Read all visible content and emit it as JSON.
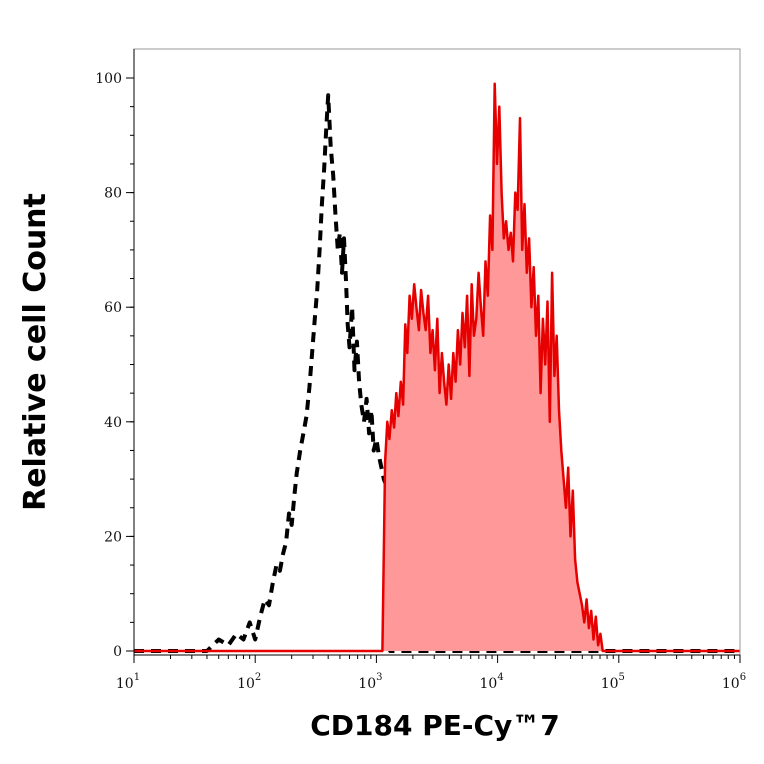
{
  "chart_data": {
    "type": "area",
    "title": "",
    "xlabel": "CD184 PE-Cy™7",
    "ylabel": "Relative cell Count",
    "xscale": "log",
    "xlim": [
      10,
      1000000
    ],
    "ylim": [
      0,
      100
    ],
    "yticks": [
      0,
      20,
      40,
      60,
      80,
      100
    ],
    "xticks": [
      {
        "value": 10,
        "base": "10",
        "exp": "1"
      },
      {
        "value": 100,
        "base": "10",
        "exp": "2"
      },
      {
        "value": 1000,
        "base": "10",
        "exp": "3"
      },
      {
        "value": 10000,
        "base": "10",
        "exp": "4"
      },
      {
        "value": 100000,
        "base": "10",
        "exp": "5"
      },
      {
        "value": 1000000,
        "base": "10",
        "exp": "6"
      }
    ],
    "grid": false,
    "series": [
      {
        "style": "dashed",
        "color": "#000000",
        "fill": "none",
        "x": [
          10,
          30,
          40,
          50,
          60,
          70,
          80,
          90,
          100,
          110,
          120,
          130,
          140,
          150,
          160,
          170,
          180,
          190,
          200,
          210,
          220,
          235,
          250,
          265,
          280,
          295,
          310,
          325,
          340,
          355,
          370,
          385,
          400,
          420,
          440,
          460,
          480,
          500,
          520,
          540,
          560,
          580,
          600,
          630,
          660,
          690,
          720,
          750,
          790,
          830,
          870,
          910,
          950,
          1000,
          1050,
          1100,
          1150,
          1200,
          1300,
          1500,
          2000,
          3000,
          5000,
          8000,
          12000,
          20000,
          40000,
          80000,
          200000,
          1000000
        ],
        "y": [
          0,
          0,
          0,
          2,
          1,
          3,
          2,
          5,
          2,
          6,
          9,
          8,
          12,
          15,
          14,
          17,
          19,
          24,
          22,
          27,
          31,
          35,
          38,
          41,
          46,
          52,
          58,
          63,
          70,
          78,
          84,
          91,
          97,
          88,
          83,
          76,
          70,
          73,
          66,
          72,
          65,
          57,
          53,
          60,
          49,
          54,
          47,
          43,
          40,
          44,
          38,
          42,
          35,
          37,
          34,
          32,
          30,
          29,
          0,
          0,
          0,
          0,
          0,
          0,
          0,
          0,
          0,
          0,
          0,
          0
        ]
      },
      {
        "style": "solid",
        "color": "#e60000",
        "fill": "#ff9999",
        "x": [
          10,
          500,
          1000,
          1120,
          1180,
          1230,
          1280,
          1340,
          1400,
          1460,
          1520,
          1590,
          1660,
          1730,
          1800,
          1880,
          1960,
          2050,
          2140,
          2240,
          2340,
          2440,
          2550,
          2670,
          2790,
          2910,
          3040,
          3180,
          3320,
          3470,
          3620,
          3780,
          3950,
          4130,
          4310,
          4500,
          4700,
          4910,
          5130,
          5360,
          5600,
          5850,
          6110,
          6380,
          6670,
          6970,
          7280,
          7600,
          7940,
          8300,
          8670,
          9060,
          9460,
          9880,
          10320,
          10780,
          11260,
          11760,
          12290,
          12840,
          13410,
          14010,
          14630,
          15290,
          15970,
          16680,
          17430,
          18200,
          19020,
          19870,
          20750,
          21680,
          22650,
          23660,
          24710,
          25820,
          26970,
          28170,
          29430,
          30740,
          32120,
          33550,
          35050,
          36610,
          38250,
          39950,
          41740,
          43600,
          45550,
          47580,
          49710,
          51930,
          54250,
          56670,
          59200,
          61840,
          64610,
          67490,
          70500,
          73650,
          80000,
          100000,
          1000000
        ],
        "y": [
          0,
          0,
          0,
          0,
          33,
          40,
          37,
          42,
          39,
          45,
          41,
          47,
          43,
          57,
          52,
          62,
          58,
          64,
          60,
          56,
          63,
          59,
          56,
          62,
          52,
          56,
          49,
          58,
          45,
          52,
          47,
          43,
          50,
          44,
          52,
          47,
          56,
          50,
          59,
          53,
          62,
          48,
          64,
          55,
          58,
          66,
          60,
          55,
          68,
          62,
          76,
          70,
          99,
          85,
          95,
          80,
          72,
          75,
          70,
          73,
          68,
          80,
          77,
          93,
          70,
          78,
          66,
          72,
          60,
          67,
          55,
          62,
          45,
          58,
          50,
          61,
          40,
          66,
          48,
          55,
          42,
          35,
          30,
          25,
          32,
          20,
          28,
          16,
          12,
          10,
          8,
          5,
          9,
          4,
          7,
          2,
          6,
          1,
          3,
          0,
          0,
          0,
          0
        ]
      }
    ]
  }
}
